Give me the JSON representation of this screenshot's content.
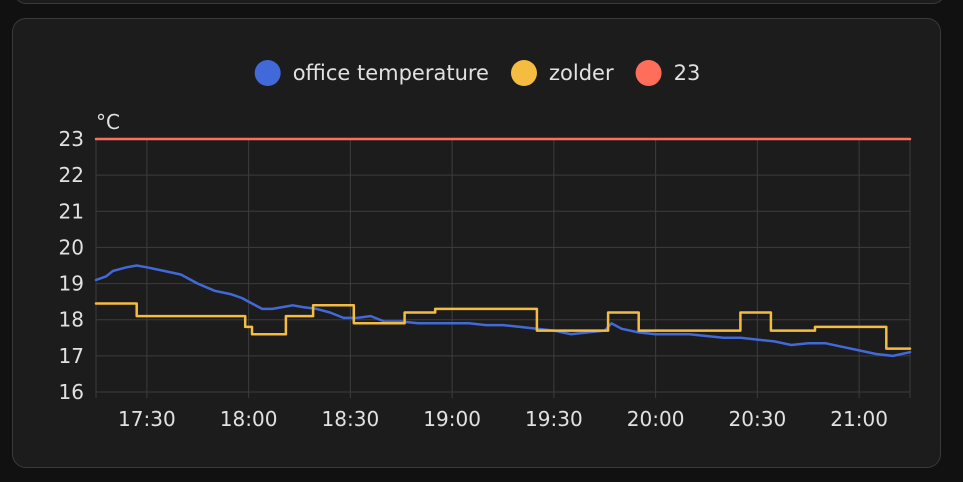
{
  "colors": {
    "office": "#4169d8",
    "zolder": "#f5bc42",
    "limit": "#ff6e5a",
    "background": "#1c1c1c",
    "text": "#e1e1e1",
    "grid": "#3c3c3c"
  },
  "chart_data": {
    "type": "line",
    "unit_label": "°C",
    "ylim": [
      16,
      23
    ],
    "y_ticks": [
      "16",
      "17",
      "18",
      "19",
      "20",
      "21",
      "22",
      "23"
    ],
    "x_ticks": [
      "17:30",
      "18:00",
      "18:30",
      "19:00",
      "19:30",
      "20:00",
      "20:30",
      "21:00"
    ],
    "xlim": [
      "17:15",
      "21:15"
    ],
    "grid": true,
    "legend": "top-center",
    "series": [
      {
        "name": "office temperature",
        "color": "#4169d8",
        "step": false,
        "x": [
          "17:15",
          "17:18",
          "17:20",
          "17:24",
          "17:27",
          "17:30",
          "17:35",
          "17:40",
          "17:45",
          "17:50",
          "17:55",
          "17:58",
          "18:01",
          "18:04",
          "18:07",
          "18:10",
          "18:13",
          "18:16",
          "18:20",
          "18:24",
          "18:28",
          "18:32",
          "18:36",
          "18:40",
          "18:45",
          "18:50",
          "18:55",
          "19:00",
          "19:05",
          "19:10",
          "19:15",
          "19:20",
          "19:25",
          "19:30",
          "19:35",
          "19:40",
          "19:45",
          "19:47",
          "19:50",
          "19:55",
          "20:00",
          "20:05",
          "20:10",
          "20:15",
          "20:20",
          "20:25",
          "20:30",
          "20:35",
          "20:40",
          "20:45",
          "20:50",
          "20:55",
          "21:00",
          "21:05",
          "21:10",
          "21:15"
        ],
        "values": [
          19.1,
          19.2,
          19.35,
          19.45,
          19.5,
          19.45,
          19.35,
          19.25,
          19.0,
          18.8,
          18.7,
          18.6,
          18.45,
          18.3,
          18.3,
          18.35,
          18.4,
          18.35,
          18.3,
          18.2,
          18.05,
          18.05,
          18.1,
          17.95,
          17.95,
          17.9,
          17.9,
          17.9,
          17.9,
          17.85,
          17.85,
          17.8,
          17.75,
          17.7,
          17.6,
          17.65,
          17.7,
          17.9,
          17.75,
          17.65,
          17.6,
          17.6,
          17.6,
          17.55,
          17.5,
          17.5,
          17.45,
          17.4,
          17.3,
          17.35,
          17.35,
          17.25,
          17.15,
          17.05,
          17.0,
          17.1
        ]
      },
      {
        "name": "zolder",
        "color": "#f5bc42",
        "step": true,
        "x": [
          "17:15",
          "17:27",
          "17:59",
          "18:01",
          "18:11",
          "18:19",
          "18:31",
          "18:46",
          "18:55",
          "19:25",
          "19:46",
          "19:55",
          "20:25",
          "20:34",
          "20:47",
          "21:08",
          "21:15"
        ],
        "values": [
          18.45,
          18.1,
          17.8,
          17.6,
          18.1,
          18.4,
          17.9,
          18.2,
          18.3,
          17.7,
          18.2,
          17.7,
          18.2,
          17.7,
          17.8,
          17.2,
          17.2
        ]
      },
      {
        "name": "23",
        "color": "#ff6e5a",
        "step": false,
        "x": [
          "17:15",
          "21:15"
        ],
        "values": [
          23,
          23
        ]
      }
    ]
  }
}
